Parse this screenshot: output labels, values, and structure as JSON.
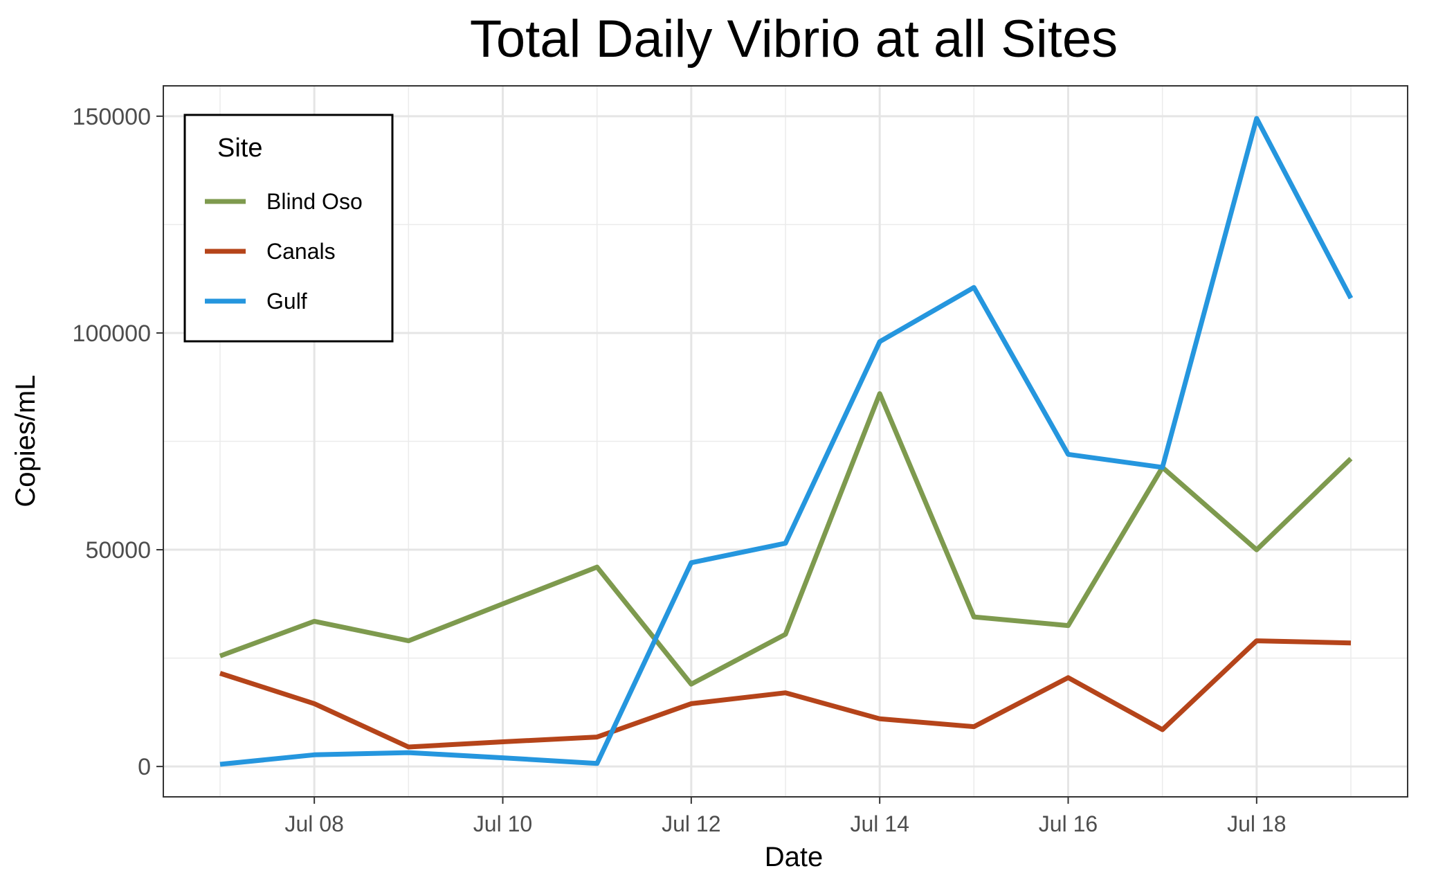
{
  "chart_data": {
    "type": "line",
    "title": "Total Daily Vibrio at all Sites",
    "xlabel": "Date",
    "ylabel": "Copies/mL",
    "x": [
      "Jul 07",
      "Jul 08",
      "Jul 09",
      "Jul 10",
      "Jul 11",
      "Jul 12",
      "Jul 13",
      "Jul 14",
      "Jul 15",
      "Jul 16",
      "Jul 17",
      "Jul 18",
      "Jul 19"
    ],
    "x_ticks": [
      {
        "index": 1,
        "label": "Jul 08"
      },
      {
        "index": 3,
        "label": "Jul 10"
      },
      {
        "index": 5,
        "label": "Jul 12"
      },
      {
        "index": 7,
        "label": "Jul 14"
      },
      {
        "index": 9,
        "label": "Jul 16"
      },
      {
        "index": 11,
        "label": "Jul 18"
      }
    ],
    "y_ticks": [
      0,
      50000,
      100000,
      150000
    ],
    "y_tick_labels": [
      "0",
      "50000",
      "100000",
      "150000"
    ],
    "ylim": [
      -7000,
      157000
    ],
    "grid": true,
    "legend": {
      "title": "Site",
      "position": "top-left"
    },
    "series": [
      {
        "name": "Blind Oso",
        "color": "#7E9A4E",
        "values": [
          25500,
          33500,
          29000,
          37500,
          46000,
          19000,
          30500,
          86000,
          34500,
          32500,
          69000,
          50000,
          71000
        ]
      },
      {
        "name": "Canals",
        "color": "#B5441A",
        "values": [
          21500,
          14500,
          4500,
          5700,
          6800,
          14500,
          17000,
          11000,
          9200,
          20500,
          8500,
          29000,
          28500
        ]
      },
      {
        "name": "Gulf",
        "color": "#2596DE",
        "values": [
          500,
          2700,
          3200,
          2000,
          700,
          47000,
          51500,
          98000,
          110500,
          72000,
          69000,
          149500,
          108000
        ]
      }
    ]
  }
}
